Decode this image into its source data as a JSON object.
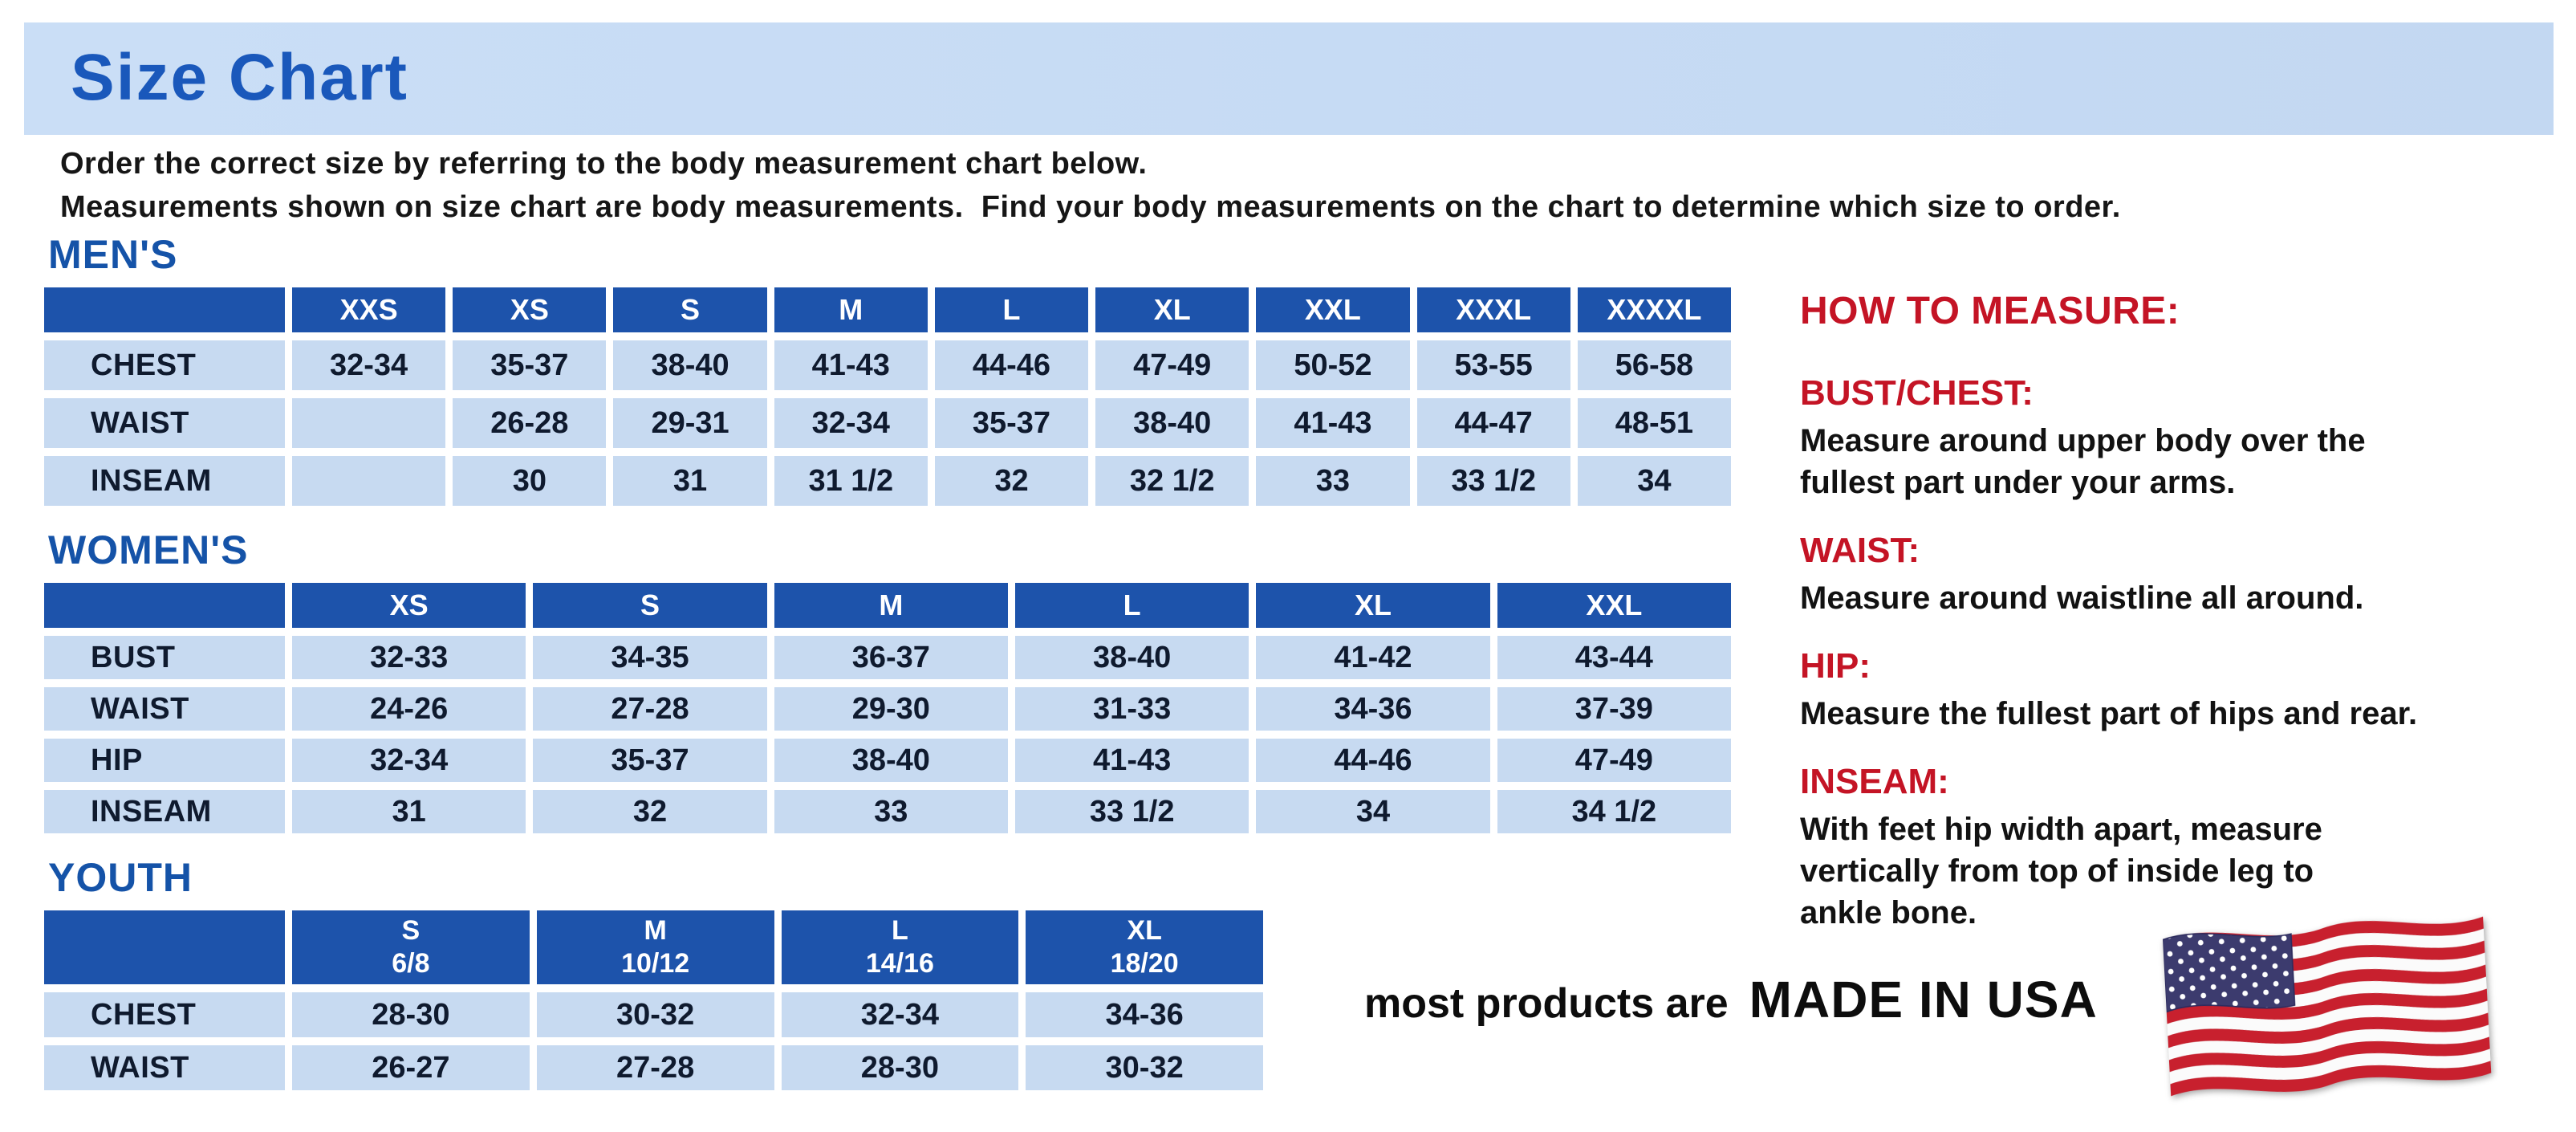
{
  "page": {
    "title": "Size Chart",
    "intro_line1": "Order the correct size by referring to the body measurement chart below.",
    "intro_line2": "Measurements shown on size chart are body measurements.  Find your body measurements on the chart to determine which size to order."
  },
  "colors": {
    "banner_bg": "#cadef6",
    "banner_bg2": "#c3d8f2",
    "title_blue": "#1a58bb",
    "heading_blue": "#1553a8",
    "table_header_bg": "#1d53ab",
    "cell_bg": "#c7daf1",
    "cell_text": "#0f1a2e",
    "accent_red": "#c41425",
    "flag_red": "#c8202e",
    "flag_blue": "#3c3b6e"
  },
  "tables": [
    {
      "section": "MEN'S",
      "columns": [
        "",
        "XXS",
        "XS",
        "S",
        "M",
        "L",
        "XL",
        "XXL",
        "XXXL",
        "XXXXL"
      ],
      "rows": [
        {
          "label": "CHEST",
          "values": [
            "32-34",
            "35-37",
            "38-40",
            "41-43",
            "44-46",
            "47-49",
            "50-52",
            "53-55",
            "56-58"
          ]
        },
        {
          "label": "WAIST",
          "values": [
            "",
            "26-28",
            "29-31",
            "32-34",
            "35-37",
            "38-40",
            "41-43",
            "44-47",
            "48-51"
          ]
        },
        {
          "label": "INSEAM",
          "values": [
            "",
            "30",
            "31",
            "31 1/2",
            "32",
            "32 1/2",
            "33",
            "33 1/2",
            "34"
          ]
        }
      ]
    },
    {
      "section": "WOMEN'S",
      "columns": [
        "",
        "XS",
        "S",
        "M",
        "L",
        "XL",
        "XXL"
      ],
      "rows": [
        {
          "label": "BUST",
          "values": [
            "32-33",
            "34-35",
            "36-37",
            "38-40",
            "41-42",
            "43-44"
          ]
        },
        {
          "label": "WAIST",
          "values": [
            "24-26",
            "27-28",
            "29-30",
            "31-33",
            "34-36",
            "37-39"
          ]
        },
        {
          "label": "HIP",
          "values": [
            "32-34",
            "35-37",
            "38-40",
            "41-43",
            "44-46",
            "47-49"
          ]
        },
        {
          "label": "INSEAM",
          "values": [
            "31",
            "32",
            "33",
            "33 1/2",
            "34",
            "34 1/2"
          ]
        }
      ]
    },
    {
      "section": "YOUTH",
      "columns": [
        "",
        "S\n6/8",
        "M\n10/12",
        "L\n14/16",
        "XL\n18/20"
      ],
      "rows": [
        {
          "label": "CHEST",
          "values": [
            "28-30",
            "30-32",
            "32-34",
            "34-36"
          ]
        },
        {
          "label": "WAIST",
          "values": [
            "26-27",
            "27-28",
            "28-30",
            "30-32"
          ]
        }
      ]
    }
  ],
  "how_to_measure": {
    "title": "HOW TO MEASURE:",
    "items": [
      {
        "label": "BUST/CHEST:",
        "text": "Measure around upper body over the\nfullest part under your arms."
      },
      {
        "label": "WAIST:",
        "text": "Measure around waistline all around."
      },
      {
        "label": "HIP:",
        "text": "Measure the fullest part of hips and rear."
      },
      {
        "label": "INSEAM:",
        "text": "With feet hip width apart, measure\nvertically from top of inside leg to\nankle bone."
      }
    ]
  },
  "footer": {
    "prefix": "most products are",
    "emphasis": "MADE IN USA",
    "flag_icon": "usa-flag-icon"
  }
}
